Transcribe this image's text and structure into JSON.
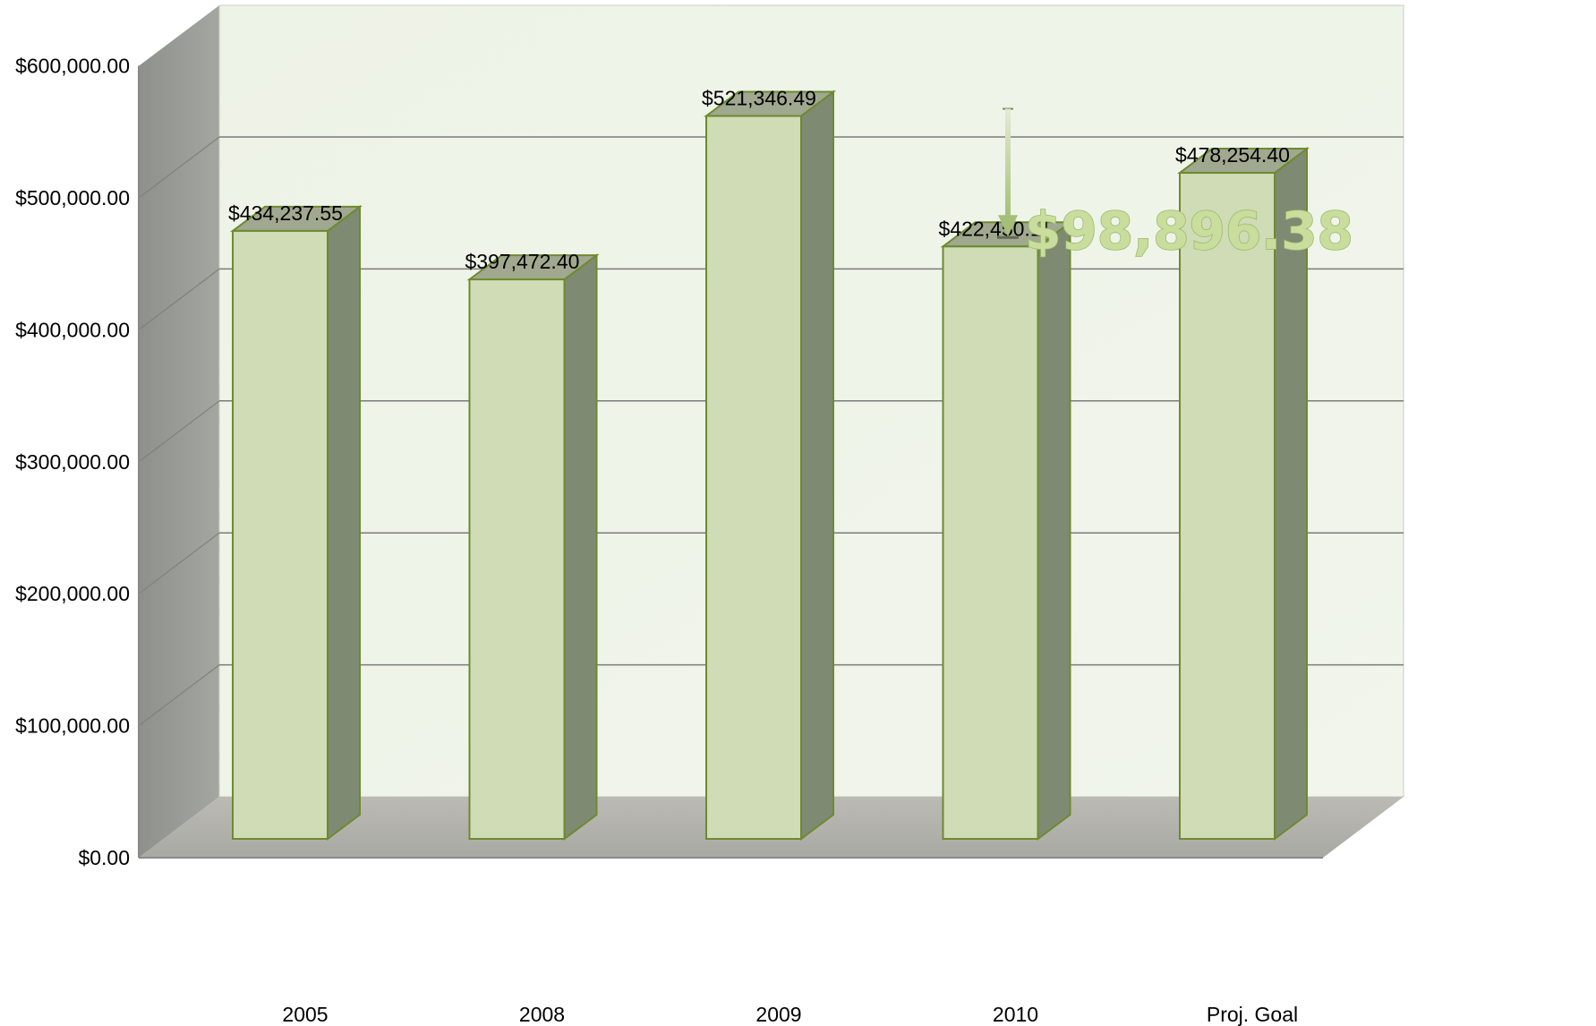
{
  "chart_data": {
    "type": "bar",
    "style": "3d-clustered-column",
    "title": "",
    "xlabel": "",
    "ylabel": "",
    "categories": [
      "2005",
      "2008",
      "2009",
      "2010",
      "Proj. Goal"
    ],
    "series": [
      {
        "values": [
          434237.55,
          397472.4,
          521346.49,
          422450.11,
          478254.4
        ],
        "data_labels": [
          "$434,237.55",
          "$397,472.40",
          "$521,346.49",
          "$422,450.11",
          "$478,254.40"
        ]
      }
    ],
    "ylim": [
      0,
      600000
    ],
    "y_ticks": [
      0,
      100000,
      200000,
      300000,
      400000,
      500000,
      600000
    ],
    "y_tick_labels": [
      "$0.00",
      "$100,000.00",
      "$200,000.00",
      "$300,000.00",
      "$400,000.00",
      "$500,000.00",
      "$600,000.00"
    ],
    "grid": true,
    "legend": "none",
    "annotation": {
      "text": "$98,896.38",
      "from_value": 521346.49,
      "to_value": 422450.11,
      "between": [
        "2009",
        "2010"
      ],
      "description": "difference arrow pointing down"
    },
    "colors": {
      "plot_back_wall": "#eef3e8",
      "side_wall": "#9a9d97",
      "floor": "#b3b3ad",
      "bar_front": "#cfdcb5",
      "bar_side": "#7f8a72",
      "bar_top": "#a0a98f",
      "bar_edge": "#6e8a2f",
      "gridline": "#7b7b7b",
      "annotation": "#c9dd9d"
    }
  }
}
